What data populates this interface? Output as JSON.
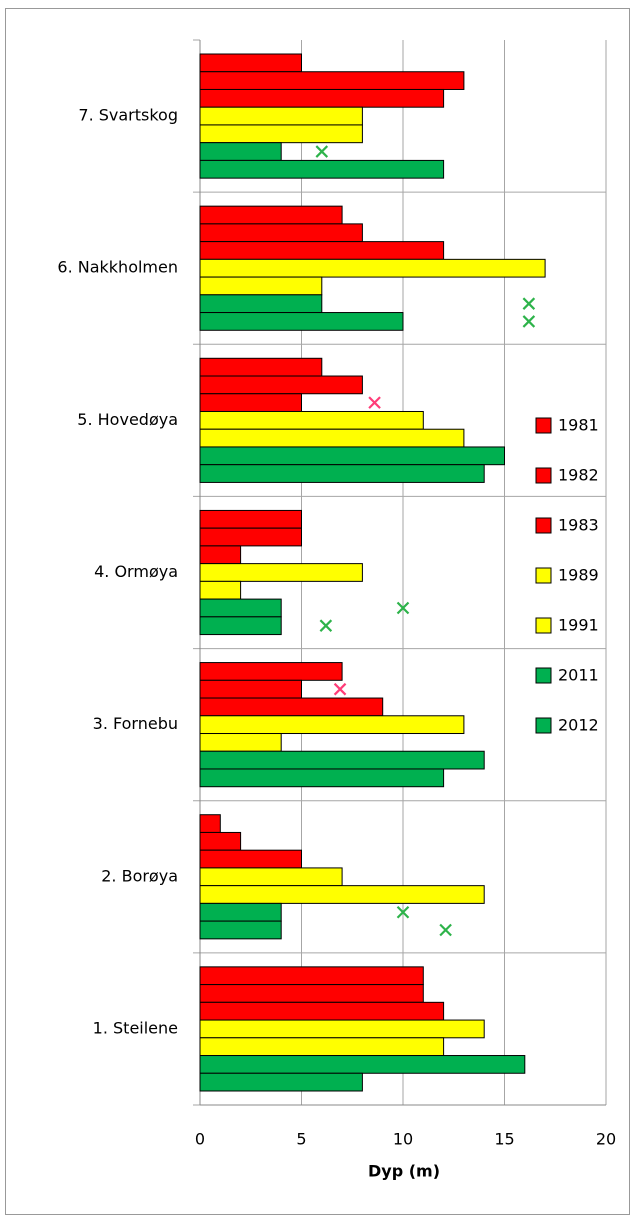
{
  "chart_data": {
    "type": "bar",
    "orientation": "horizontal",
    "x_label": "Dyp (m)",
    "categories": [
      "1. Steilene",
      "2. Borøya",
      "3. Fornebu",
      "4. Ormøya",
      "5. Hovedøya",
      "6. Nakkholmen",
      "7. Svartskog"
    ],
    "series": [
      {
        "name": "1981",
        "color": "#ff0000",
        "values": [
          11,
          1,
          7,
          5,
          6,
          7,
          5
        ]
      },
      {
        "name": "1982",
        "color": "#ff0000",
        "values": [
          11,
          2,
          5,
          5,
          8,
          8,
          13
        ],
        "marker_color": "#ff3c78",
        "markers": [
          null,
          null,
          6.9,
          null,
          null,
          null,
          null
        ]
      },
      {
        "name": "1983",
        "color": "#ff0000",
        "values": [
          12,
          5,
          9,
          2,
          5,
          12,
          12
        ],
        "marker_color": "#ff3c78",
        "markers": [
          null,
          null,
          null,
          null,
          8.6,
          null,
          null
        ]
      },
      {
        "name": "1989",
        "color": "#ffff00",
        "values": [
          14,
          7,
          13,
          8,
          11,
          17,
          8
        ]
      },
      {
        "name": "1991",
        "color": "#ffff00",
        "values": [
          12,
          14,
          4,
          2,
          13,
          6,
          8
        ]
      },
      {
        "name": "2011",
        "color": "#00b050",
        "values": [
          16,
          4,
          14,
          4,
          15,
          6,
          4
        ],
        "marker_color": "#2db34a",
        "markers": [
          null,
          10,
          null,
          10,
          null,
          16.2,
          6
        ]
      },
      {
        "name": "2012",
        "color": "#00b050",
        "values": [
          8,
          4,
          12,
          4,
          14,
          10,
          12
        ],
        "marker_color": "#2db34a",
        "markers": [
          null,
          12.1,
          null,
          6.2,
          null,
          16.2,
          null
        ]
      }
    ],
    "xlim": [
      0,
      20
    ],
    "xticks": [
      0,
      5,
      10,
      15,
      20
    ],
    "grid": true,
    "legend": "right"
  }
}
